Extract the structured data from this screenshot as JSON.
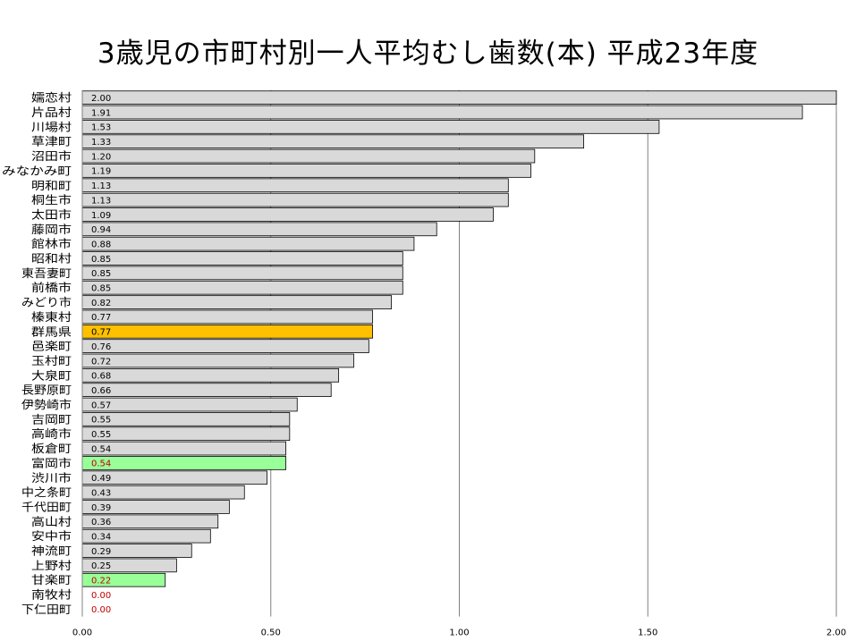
{
  "chart_data": {
    "type": "bar",
    "orientation": "horizontal",
    "title": "3歳児の市町村別一人平均むし歯数(本)  平成23年度",
    "xlabel": "",
    "ylabel": "",
    "xlim": [
      0,
      2
    ],
    "x_ticks": [
      "0.00",
      "0.50",
      "1.00",
      "1.50",
      "2.00"
    ],
    "grid": "vertical",
    "legend": "none",
    "categories": [
      "嬬恋村",
      "片品村",
      "川場村",
      "草津町",
      "沼田市",
      "みなかみ町",
      "明和町",
      "桐生市",
      "太田市",
      "藤岡市",
      "館林市",
      "昭和村",
      "東吾妻町",
      "前橋市",
      "みどり市",
      "榛東村",
      "群馬県",
      "邑楽町",
      "玉村町",
      "大泉町",
      "長野原町",
      "伊勢崎市",
      "吉岡町",
      "高崎市",
      "板倉町",
      "富岡市",
      "渋川市",
      "中之条町",
      "千代田町",
      "高山村",
      "安中市",
      "神流町",
      "上野村",
      "甘楽町",
      "南牧村",
      "下仁田町"
    ],
    "values": [
      2.0,
      1.91,
      1.53,
      1.33,
      1.2,
      1.19,
      1.13,
      1.13,
      1.09,
      0.94,
      0.88,
      0.85,
      0.85,
      0.85,
      0.82,
      0.77,
      0.77,
      0.76,
      0.72,
      0.68,
      0.66,
      0.57,
      0.55,
      0.55,
      0.54,
      0.54,
      0.49,
      0.43,
      0.39,
      0.36,
      0.34,
      0.29,
      0.25,
      0.22,
      0.0,
      0.0
    ],
    "value_labels": [
      "2.00",
      "1.91",
      "1.53",
      "1.33",
      "1.20",
      "1.19",
      "1.13",
      "1.13",
      "1.09",
      "0.94",
      "0.88",
      "0.85",
      "0.85",
      "0.85",
      "0.82",
      "0.77",
      "0.77",
      "0.76",
      "0.72",
      "0.68",
      "0.66",
      "0.57",
      "0.55",
      "0.55",
      "0.54",
      "0.54",
      "0.49",
      "0.43",
      "0.39",
      "0.36",
      "0.34",
      "0.29",
      "0.25",
      "0.22",
      "0.00",
      "0.00"
    ],
    "highlights": {
      "群馬県": "#ffc000",
      "富岡市": "#99ff99",
      "甘楽町": "#99ff99"
    },
    "colors": {
      "bar": "#d9d9d9",
      "bar_border": "#000000",
      "label": "#000000",
      "label_highlight": "#c00000",
      "grid": "#808080"
    }
  }
}
